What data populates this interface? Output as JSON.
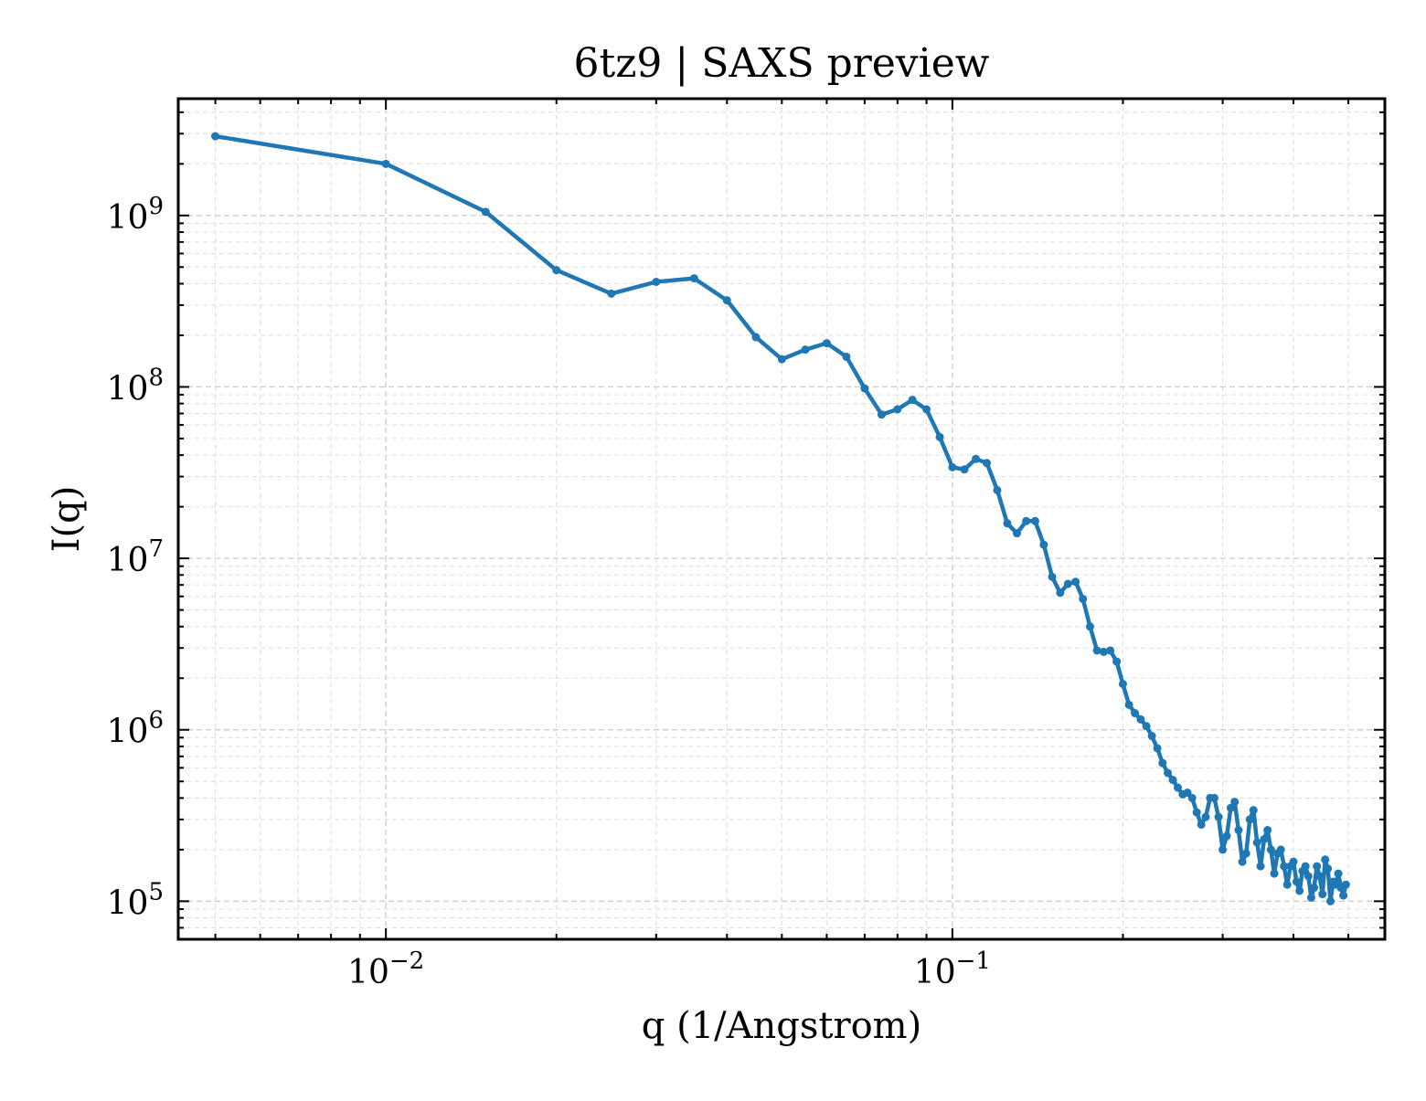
{
  "chart_data": {
    "type": "line",
    "title": "6tz9 | SAXS preview",
    "xlabel": "q (1/Angstrom)",
    "ylabel": "I(q)",
    "xscale": "log",
    "yscale": "log",
    "xlim": [
      0.0043,
      0.58
    ],
    "ylim": [
      60000,
      4800000000
    ],
    "x_ticks": [
      {
        "value": 0.01,
        "base": "10",
        "exp": "−2"
      },
      {
        "value": 0.1,
        "base": "10",
        "exp": "−1"
      }
    ],
    "y_ticks": [
      {
        "value": 100000,
        "base": "10",
        "exp": "5"
      },
      {
        "value": 1000000,
        "base": "10",
        "exp": "6"
      },
      {
        "value": 10000000,
        "base": "10",
        "exp": "7"
      },
      {
        "value": 100000000,
        "base": "10",
        "exp": "8"
      },
      {
        "value": 1000000000,
        "base": "10",
        "exp": "9"
      }
    ],
    "grid": true,
    "colors": {
      "line": "#1f77b4"
    },
    "series": [
      {
        "x": [
          0.005,
          0.01,
          0.015,
          0.02,
          0.025,
          0.03,
          0.035,
          0.04,
          0.045,
          0.05,
          0.055,
          0.06,
          0.065,
          0.07,
          0.075,
          0.08,
          0.085,
          0.09,
          0.095,
          0.1,
          0.105,
          0.11,
          0.115,
          0.12,
          0.125,
          0.13,
          0.135,
          0.14,
          0.145,
          0.15,
          0.155,
          0.16,
          0.165,
          0.17,
          0.175,
          0.18,
          0.185,
          0.19,
          0.195,
          0.2,
          0.205,
          0.21,
          0.215,
          0.22,
          0.225,
          0.23,
          0.235,
          0.24,
          0.245,
          0.25,
          0.255,
          0.26,
          0.265,
          0.27,
          0.275,
          0.28,
          0.285,
          0.29,
          0.295,
          0.3,
          0.305,
          0.31,
          0.315,
          0.32,
          0.325,
          0.33,
          0.335,
          0.34,
          0.345,
          0.35,
          0.355,
          0.36,
          0.365,
          0.37,
          0.375,
          0.38,
          0.385,
          0.39,
          0.395,
          0.4,
          0.405,
          0.41,
          0.415,
          0.42,
          0.425,
          0.43,
          0.435,
          0.44,
          0.445,
          0.45,
          0.455,
          0.46,
          0.465,
          0.47,
          0.475,
          0.48,
          0.485,
          0.49,
          0.495
        ],
        "values": [
          2900000000,
          2000000000,
          1050000000,
          480000000,
          350000000,
          410000000,
          430000000,
          320000000,
          195000000,
          145000000,
          165000000,
          180000000,
          150000000,
          98000000,
          69000000,
          74000000,
          84000000,
          74000000,
          51000000,
          34000000,
          33000000,
          38000000,
          36000000,
          25000000,
          16000000,
          14000000,
          16500000,
          16500000,
          12000000,
          7800000,
          6300000,
          7100000,
          7300000,
          5800000,
          4000000,
          2900000,
          2850000,
          2900000,
          2500000,
          1850000,
          1400000,
          1250000,
          1150000,
          1050000,
          920000,
          780000,
          640000,
          560000,
          510000,
          460000,
          420000,
          430000,
          400000,
          330000,
          280000,
          310000,
          400000,
          400000,
          310000,
          200000,
          240000,
          350000,
          380000,
          260000,
          170000,
          190000,
          300000,
          340000,
          220000,
          160000,
          230000,
          260000,
          200000,
          145000,
          190000,
          200000,
          160000,
          125000,
          160000,
          170000,
          130000,
          115000,
          150000,
          160000,
          140000,
          105000,
          120000,
          160000,
          140000,
          110000,
          175000,
          155000,
          100000,
          130000,
          125000,
          145000,
          120000,
          108000,
          125000
        ]
      }
    ]
  }
}
